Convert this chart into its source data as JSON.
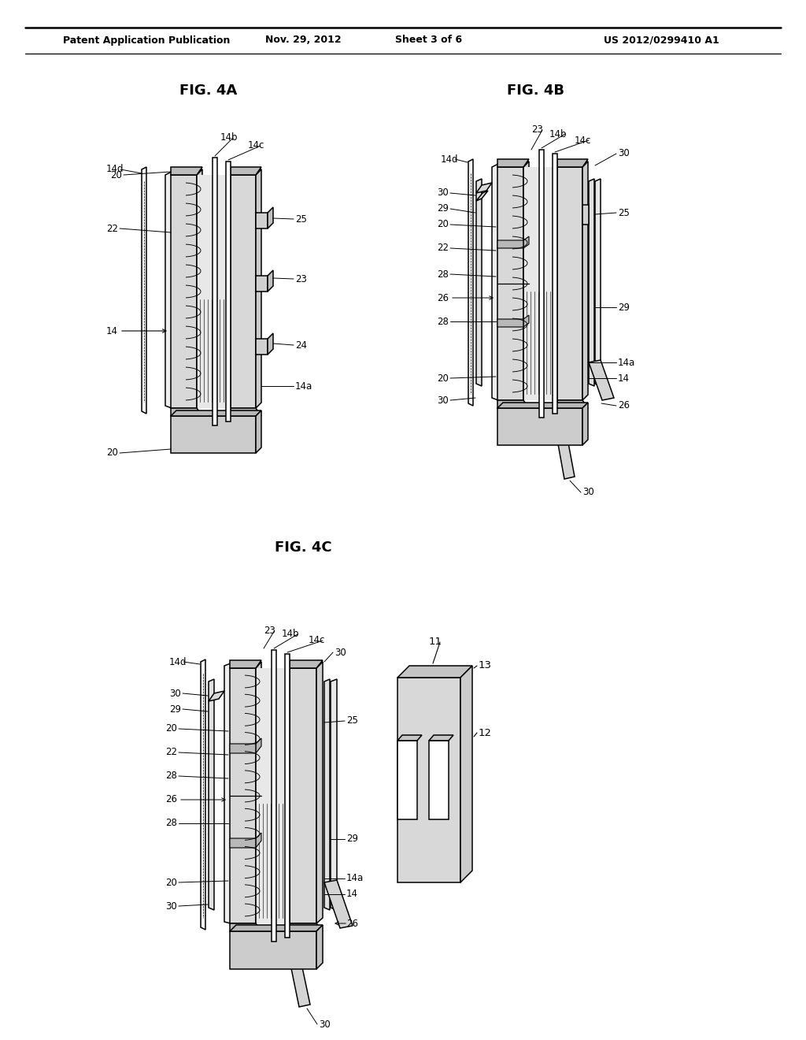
{
  "bg_color": "#ffffff",
  "header_text": "Patent Application Publication",
  "header_date": "Nov. 29, 2012",
  "header_sheet": "Sheet 3 of 6",
  "header_patent": "US 2012/0299410 A1",
  "fig4a_title": "FIG. 4A",
  "fig4b_title": "FIG. 4B",
  "fig4c_title": "FIG. 4C",
  "lw": 1.1,
  "tlw": 0.65,
  "fs": 8.5,
  "fs_fig": 13
}
